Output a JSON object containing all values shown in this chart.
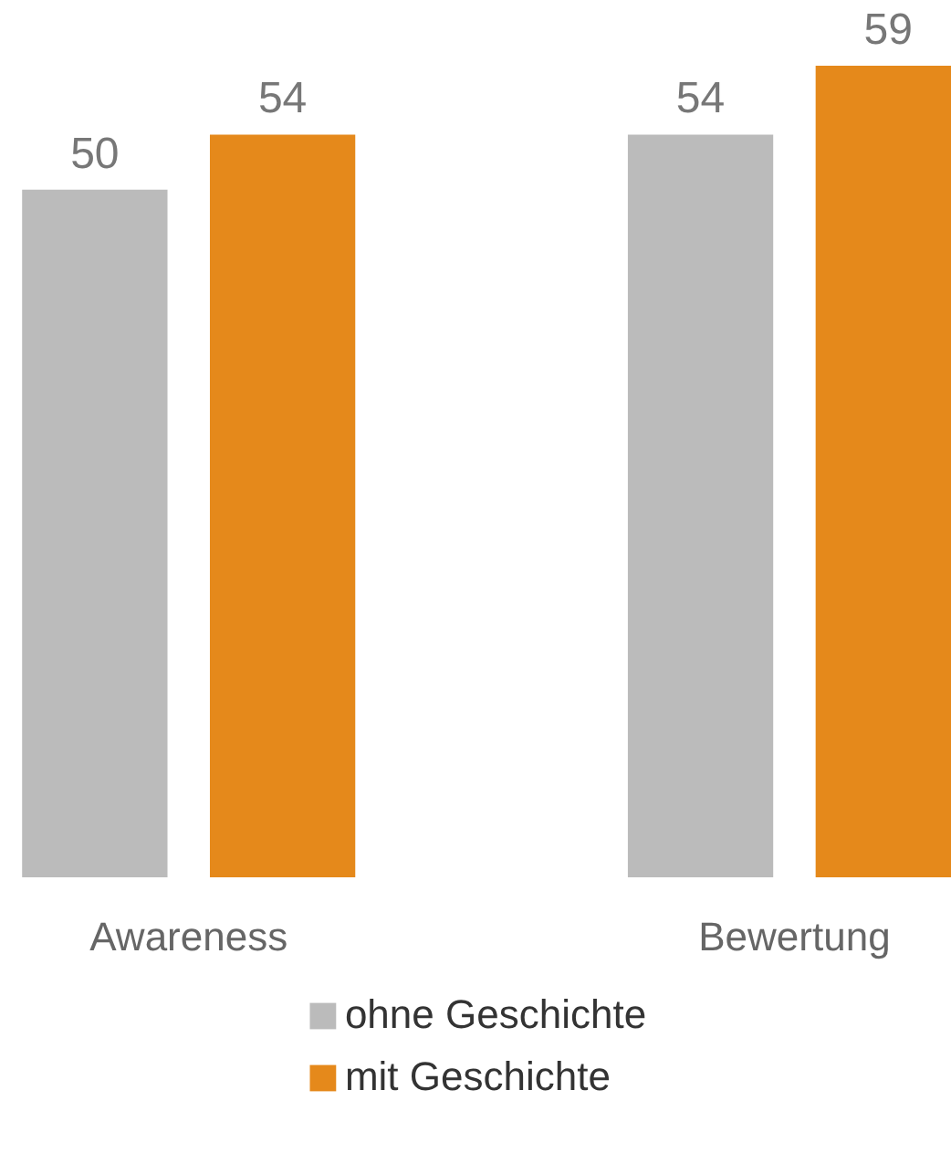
{
  "chart_data": {
    "type": "bar",
    "categories": [
      "Awareness",
      "Bewertung"
    ],
    "series": [
      {
        "name": "ohne Geschichte",
        "color": "#bbbbbb",
        "values": [
          50,
          54
        ]
      },
      {
        "name": "mit Geschichte",
        "color": "#e5891b",
        "values": [
          54,
          59
        ]
      }
    ],
    "data_labels": true,
    "grid": false,
    "legend": "bottom",
    "tick_labels": "x"
  }
}
